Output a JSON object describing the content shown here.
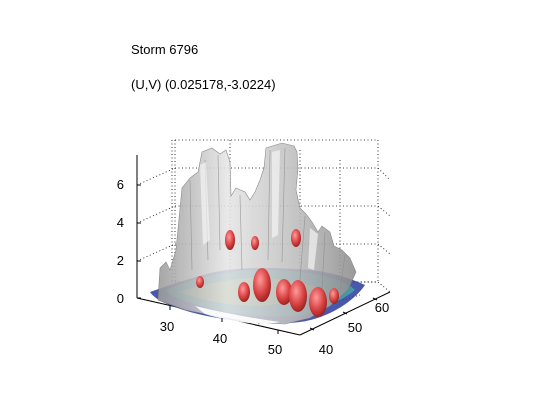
{
  "chart_data": {
    "type": "surface3d",
    "title": "Storm 6796",
    "subtitle": "(U,V) (0.025178,-3.0224)",
    "xlabel": "",
    "ylabel": "",
    "zlabel": "",
    "x_axis": {
      "range": [
        25,
        52
      ],
      "ticks": [
        30,
        40,
        50
      ]
    },
    "y_axis": {
      "range": [
        38,
        66
      ],
      "ticks": [
        40,
        50,
        60
      ]
    },
    "z_axis": {
      "range": [
        0,
        7.5
      ],
      "ticks": [
        0,
        2,
        4,
        6
      ]
    },
    "grid": true,
    "colors": {
      "outer_surface": "#c8c8c8",
      "inner_core": "#e05050",
      "mid_layer": "#3fb0a8",
      "low_layer": "#2c3a9c",
      "grid": "#000000"
    }
  }
}
